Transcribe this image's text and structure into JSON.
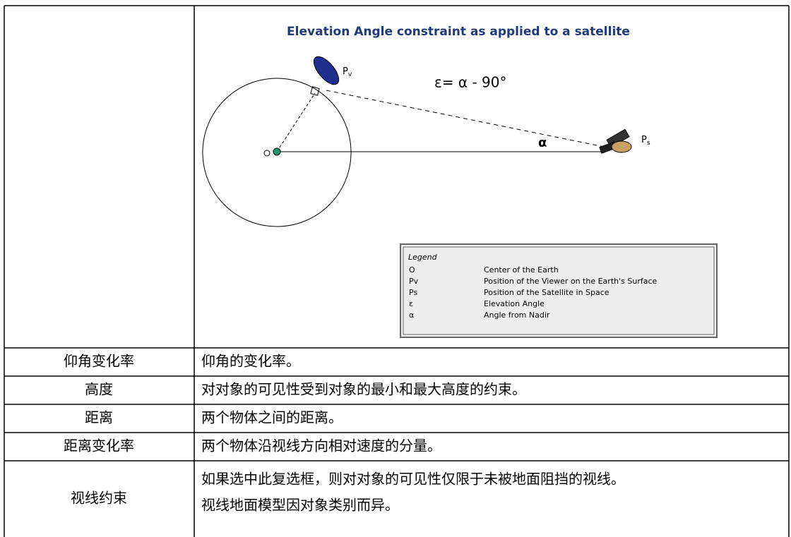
{
  "diagram": {
    "title": "Elevation Angle constraint as applied to a satellite",
    "formula": "ε= α - 90°",
    "viewer_label": {
      "base": "P",
      "sub": "v"
    },
    "satellite_label": {
      "base": "P",
      "sub": "s"
    },
    "angle_label": "α",
    "legend": {
      "title": "Legend",
      "items": [
        {
          "symbol": "O",
          "text": "Center of the Earth"
        },
        {
          "symbol": "Pv",
          "text": "Position of the Viewer on the Earth's Surface"
        },
        {
          "symbol": "Ps",
          "text": "Position of the Satellite in Space"
        },
        {
          "symbol": "ε",
          "text": "Elevation Angle"
        },
        {
          "symbol": "α",
          "text": "Angle from Nadir"
        }
      ]
    }
  },
  "table": {
    "rows": [
      [
        "仰角变化率",
        "仰角的变化率。"
      ],
      [
        "高度",
        "对对象的可见性受到对象的最小和最大高度的约束。"
      ],
      [
        "距离",
        "两个物体之间的距离。"
      ],
      [
        "距离变化率",
        "两个物体沿视线方向相对速度的分量。"
      ],
      [
        "视线约束",
        [
          "如果选中此复选框，则对对象的可见性仅限于未被地面阻挡的视线。",
          "视线地面模型因对象类别而异。"
        ]
      ]
    ]
  }
}
